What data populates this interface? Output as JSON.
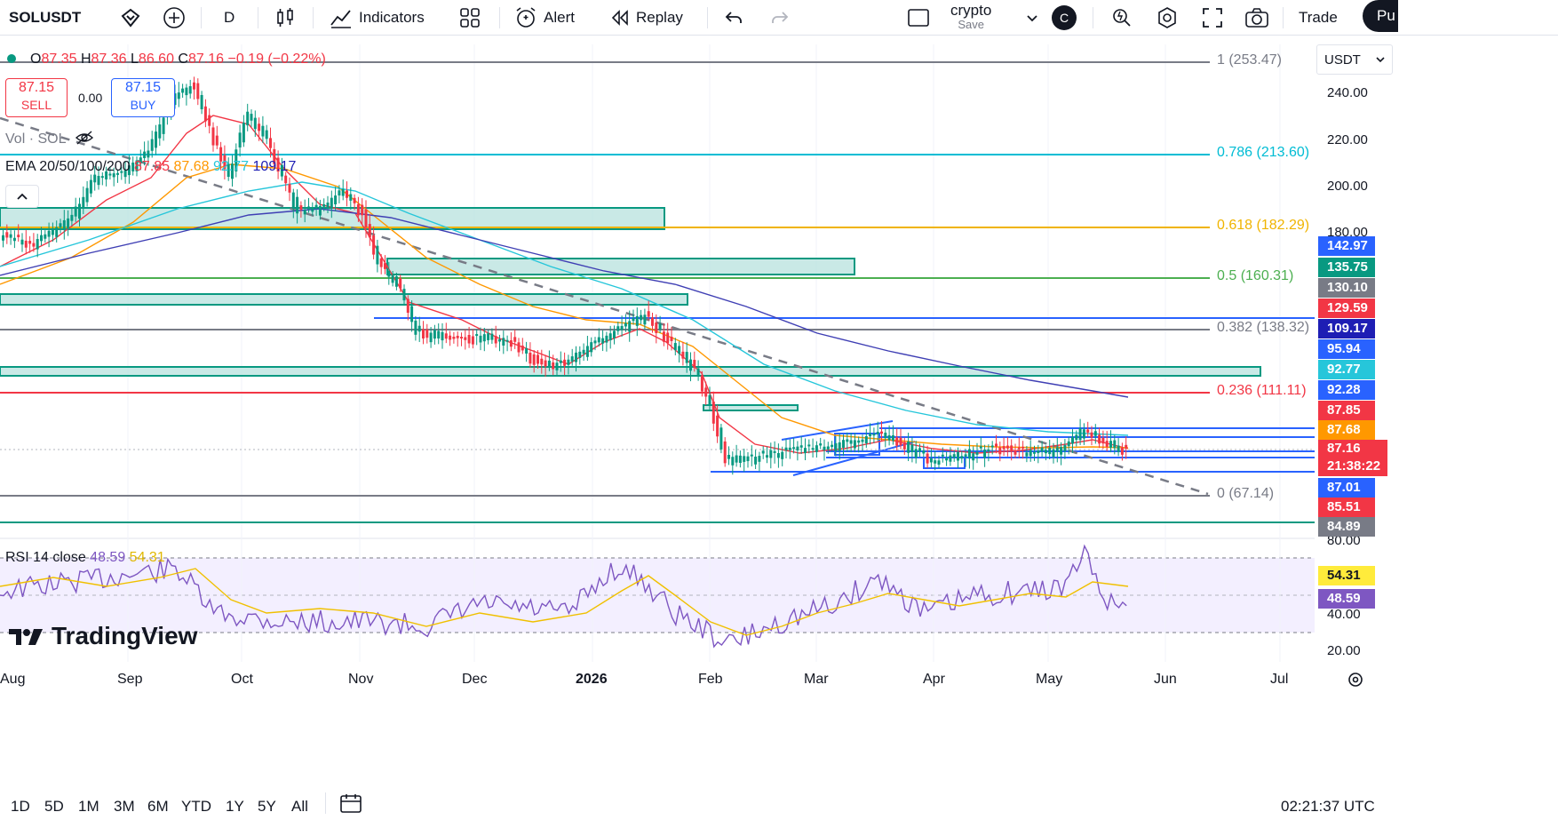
{
  "toolbar": {
    "symbol": "SOLUSDT",
    "interval": "D",
    "indicators_label": "Indicators",
    "alert_label": "Alert",
    "replay_label": "Replay",
    "layout_name": "crypto",
    "layout_save": "Save",
    "avatar_letter": "C",
    "trade_label": "Trade",
    "publish_label": "Pu"
  },
  "legend": {
    "ohlc_o_label": "O",
    "ohlc_o": "87.35",
    "ohlc_h_label": "H",
    "ohlc_h": "87.36",
    "ohlc_l_label": "L",
    "ohlc_l": "86.60",
    "ohlc_c_label": "C",
    "ohlc_c": "87.16",
    "change": "−0.19 (−0.22%)",
    "sell_price": "87.15",
    "sell_label": "SELL",
    "spread": "0.00",
    "buy_price": "87.15",
    "buy_label": "BUY",
    "vol_label": "Vol · SOL",
    "ema_label": "EMA 20/50/100/200",
    "ema20": "87.85",
    "ema50": "87.68",
    "ema100": "92.77",
    "ema200": "109.17",
    "rsi_label": "RSI 14 close",
    "rsi_value": "48.59",
    "rsi_ma": "54.31"
  },
  "price_axis": {
    "currency": "USDT",
    "ticks": [
      "240.00",
      "220.00",
      "200.00",
      "180.00",
      "80.00"
    ],
    "rsi_ticks": [
      "40.00",
      "20.00"
    ],
    "tags": [
      {
        "value": "142.97",
        "color": "#2962ff"
      },
      {
        "value": "135.75",
        "color": "#089981"
      },
      {
        "value": "130.10",
        "color": "#787b86"
      },
      {
        "value": "129.59",
        "color": "#f23645"
      },
      {
        "value": "109.17",
        "color": "#1e1eb4"
      },
      {
        "value": "95.94",
        "color": "#2962ff"
      },
      {
        "value": "92.77",
        "color": "#26c6da"
      },
      {
        "value": "92.28",
        "color": "#2962ff"
      },
      {
        "value": "87.85",
        "color": "#f23645"
      },
      {
        "value": "87.68",
        "color": "#ff9800"
      },
      {
        "value": "87.16",
        "color": "#f23645"
      },
      {
        "value": "21:38:22",
        "color": "#f23645"
      },
      {
        "value": "87.01",
        "color": "#2962ff"
      },
      {
        "value": "85.51",
        "color": "#f23645"
      },
      {
        "value": "84.89",
        "color": "#787b86"
      }
    ],
    "rsi_tags": [
      {
        "value": "54.31",
        "color": "#ffeb3b"
      },
      {
        "value": "48.59",
        "color": "#7e57c2"
      }
    ]
  },
  "fib": [
    {
      "label": "1 (253.47)",
      "color": "#787b86"
    },
    {
      "label": "0.786 (213.60)",
      "color": "#00bcd4"
    },
    {
      "label": "0.618 (182.29)",
      "color": "#f0b400"
    },
    {
      "label": "0.5 (160.31)",
      "color": "#4caf50"
    },
    {
      "label": "0.382 (138.32)",
      "color": "#787b86"
    },
    {
      "label": "0.236 (111.11)",
      "color": "#f23645"
    },
    {
      "label": "0 (67.14)",
      "color": "#787b86"
    }
  ],
  "time_axis": [
    "Aug",
    "Sep",
    "Oct",
    "Nov",
    "Dec",
    "2026",
    "Feb",
    "Mar",
    "Apr",
    "May",
    "Jun",
    "Jul"
  ],
  "watermark": "TradingView",
  "bottom": {
    "ranges": [
      "1D",
      "5D",
      "1M",
      "3M",
      "6M",
      "YTD",
      "1Y",
      "5Y",
      "All"
    ],
    "clock": "02:21:37 UTC"
  },
  "colors": {
    "up": "#089981",
    "down": "#f23645",
    "ema20": "#f23645",
    "ema50": "#ff9800",
    "ema100": "#26c6da",
    "ema200": "#3f3fb4",
    "rsi": "#7e57c2",
    "rsi_ma": "#f0c000"
  }
}
